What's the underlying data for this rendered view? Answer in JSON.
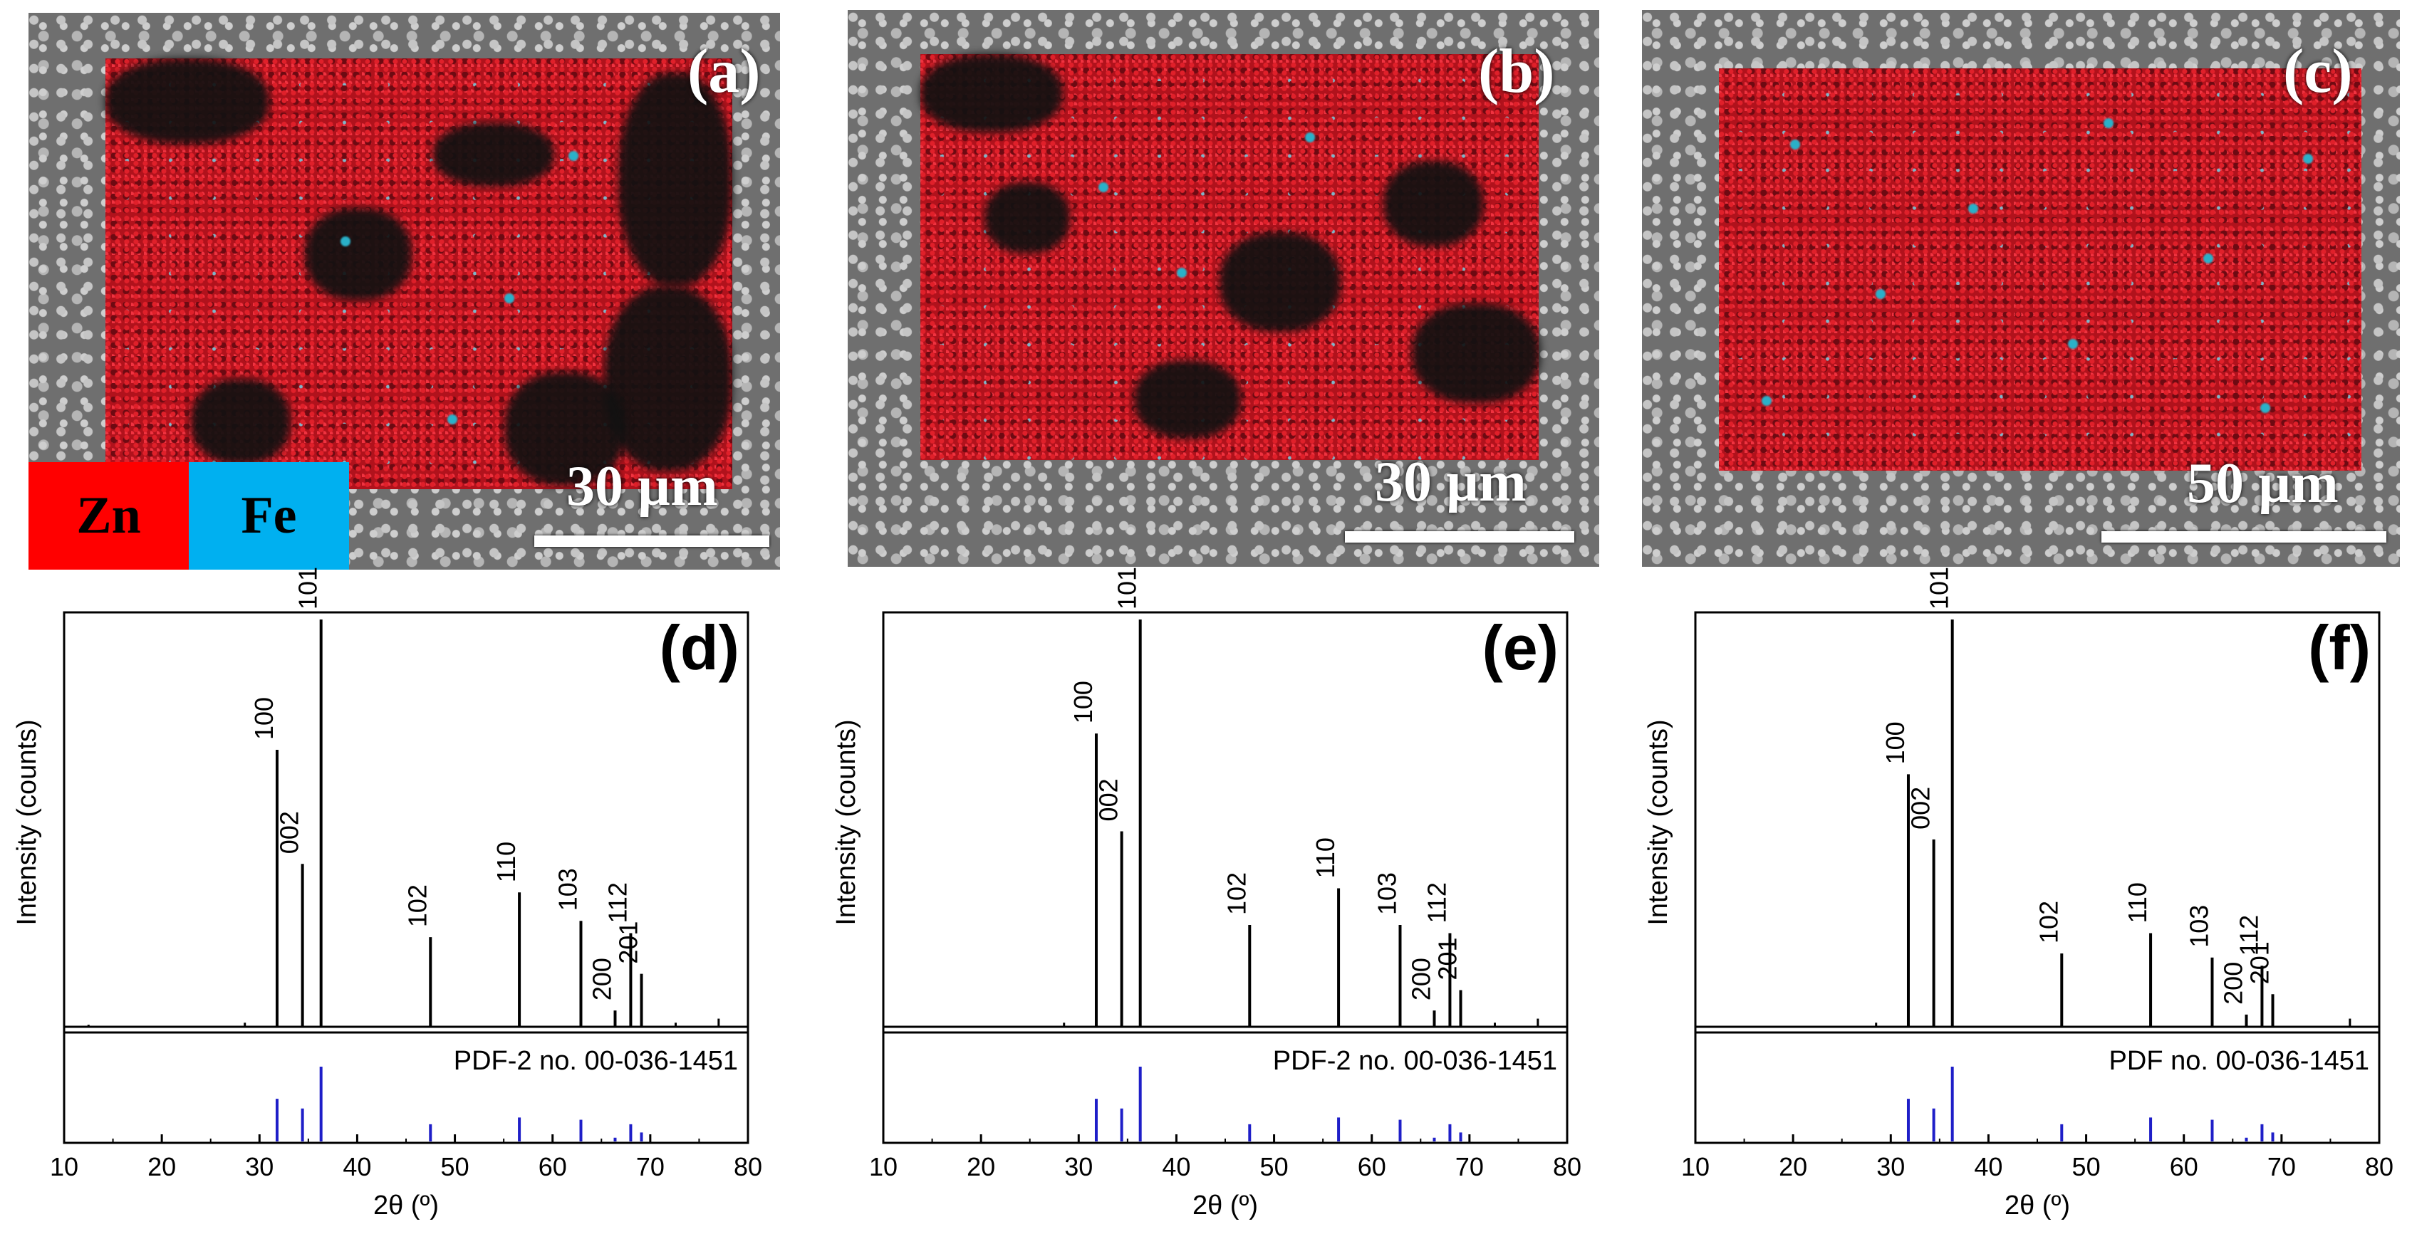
{
  "maps": [
    {
      "label": "(a)",
      "scalebar": "30 µm"
    },
    {
      "label": "(b)",
      "scalebar": "30 µm"
    },
    {
      "label": "(c)",
      "scalebar": "50 µm"
    }
  ],
  "legend": [
    {
      "element": "Zn",
      "color": "#ff0000"
    },
    {
      "element": "Fe",
      "color": "#00b0f0"
    }
  ],
  "chart_data": [
    {
      "type": "bar",
      "panel": "(d)",
      "xlabel": "2θ (º)",
      "ylabel": "Intensity (counts)",
      "xlim": [
        10,
        80
      ],
      "xticks": [
        10,
        20,
        30,
        40,
        50,
        60,
        70,
        80
      ],
      "reference_label": "PDF-2 no. 00-036-1451",
      "peaks": [
        {
          "x": 31.8,
          "y": 0.68,
          "hkl": "100"
        },
        {
          "x": 34.4,
          "y": 0.4,
          "hkl": "002"
        },
        {
          "x": 36.3,
          "y": 1.0,
          "hkl": "101"
        },
        {
          "x": 47.5,
          "y": 0.22,
          "hkl": "102"
        },
        {
          "x": 56.6,
          "y": 0.33,
          "hkl": "110"
        },
        {
          "x": 62.9,
          "y": 0.26,
          "hkl": "103"
        },
        {
          "x": 66.4,
          "y": 0.04,
          "hkl": "200"
        },
        {
          "x": 68.0,
          "y": 0.23,
          "hkl": "112"
        },
        {
          "x": 69.1,
          "y": 0.13,
          "hkl": "201"
        }
      ],
      "minor": [
        [
          28.5,
          0.01
        ],
        [
          72.6,
          0.01
        ],
        [
          77.0,
          0.02
        ],
        [
          12.5,
          0.005
        ]
      ],
      "reference": [
        [
          31.8,
          0.57
        ],
        [
          34.4,
          0.44
        ],
        [
          36.3,
          1.0
        ],
        [
          47.5,
          0.23
        ],
        [
          56.6,
          0.32
        ],
        [
          62.9,
          0.29
        ],
        [
          66.4,
          0.05
        ],
        [
          68.0,
          0.23
        ],
        [
          69.1,
          0.12
        ]
      ]
    },
    {
      "type": "bar",
      "panel": "(e)",
      "xlabel": "2θ (º)",
      "ylabel": "Intensity (counts)",
      "xlim": [
        10,
        80
      ],
      "xticks": [
        10,
        20,
        30,
        40,
        50,
        60,
        70,
        80
      ],
      "reference_label": "PDF-2 no. 00-036-1451",
      "peaks": [
        {
          "x": 31.8,
          "y": 0.72,
          "hkl": "100"
        },
        {
          "x": 34.4,
          "y": 0.48,
          "hkl": "002"
        },
        {
          "x": 36.3,
          "y": 1.0,
          "hkl": "101"
        },
        {
          "x": 47.5,
          "y": 0.25,
          "hkl": "102"
        },
        {
          "x": 56.6,
          "y": 0.34,
          "hkl": "110"
        },
        {
          "x": 62.9,
          "y": 0.25,
          "hkl": "103"
        },
        {
          "x": 66.4,
          "y": 0.04,
          "hkl": "200"
        },
        {
          "x": 68.0,
          "y": 0.23,
          "hkl": "112"
        },
        {
          "x": 69.1,
          "y": 0.09,
          "hkl": "201"
        }
      ],
      "minor": [
        [
          28.5,
          0.01
        ],
        [
          72.6,
          0.01
        ],
        [
          77.0,
          0.02
        ]
      ],
      "reference": [
        [
          31.8,
          0.57
        ],
        [
          34.4,
          0.44
        ],
        [
          36.3,
          1.0
        ],
        [
          47.5,
          0.23
        ],
        [
          56.6,
          0.32
        ],
        [
          62.9,
          0.29
        ],
        [
          66.4,
          0.05
        ],
        [
          68.0,
          0.23
        ],
        [
          69.1,
          0.12
        ]
      ]
    },
    {
      "type": "bar",
      "panel": "(f)",
      "xlabel": "2θ (º)",
      "ylabel": "Intensity (counts)",
      "xlim": [
        10,
        80
      ],
      "xticks": [
        10,
        20,
        30,
        40,
        50,
        60,
        70,
        80
      ],
      "reference_label": "PDF no. 00-036-1451",
      "peaks": [
        {
          "x": 31.8,
          "y": 0.62,
          "hkl": "100"
        },
        {
          "x": 34.4,
          "y": 0.46,
          "hkl": "002"
        },
        {
          "x": 36.3,
          "y": 1.0,
          "hkl": "101"
        },
        {
          "x": 47.5,
          "y": 0.18,
          "hkl": "102"
        },
        {
          "x": 56.6,
          "y": 0.23,
          "hkl": "110"
        },
        {
          "x": 62.9,
          "y": 0.17,
          "hkl": "103"
        },
        {
          "x": 66.4,
          "y": 0.03,
          "hkl": "200"
        },
        {
          "x": 68.0,
          "y": 0.15,
          "hkl": "112"
        },
        {
          "x": 69.1,
          "y": 0.08,
          "hkl": "201"
        }
      ],
      "minor": [
        [
          28.5,
          0.01
        ],
        [
          77.0,
          0.02
        ]
      ],
      "reference": [
        [
          31.8,
          0.57
        ],
        [
          34.4,
          0.44
        ],
        [
          36.3,
          1.0
        ],
        [
          47.5,
          0.23
        ],
        [
          56.6,
          0.32
        ],
        [
          62.9,
          0.29
        ],
        [
          66.4,
          0.05
        ],
        [
          68.0,
          0.23
        ],
        [
          69.1,
          0.12
        ]
      ]
    }
  ]
}
